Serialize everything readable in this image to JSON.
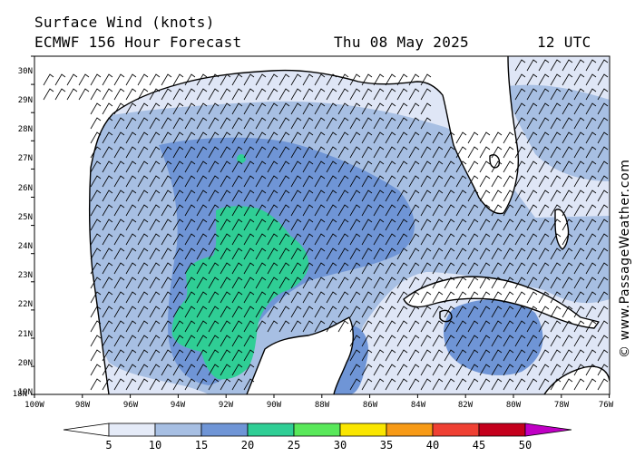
{
  "header": {
    "title": "Surface Wind (knots)",
    "model": "ECMWF 156 Hour Forecast",
    "date": "Thu 08 May 2025",
    "time": "12 UTC"
  },
  "credit": "© www.PassageWeather.com",
  "axes": {
    "lat_labels": [
      "30N",
      "29N",
      "28N",
      "27N",
      "26N",
      "25N",
      "24N",
      "23N",
      "22N",
      "21N",
      "20N",
      "19N",
      "18N"
    ],
    "lon_labels": [
      "100W",
      "98W",
      "96W",
      "94W",
      "92W",
      "90W",
      "88W",
      "86W",
      "84W",
      "82W",
      "80W",
      "78W",
      "76W"
    ]
  },
  "legend": {
    "labels": [
      "5",
      "10",
      "15",
      "20",
      "25",
      "30",
      "35",
      "40",
      "45",
      "50"
    ],
    "colors": [
      "#e5ebf8",
      "#a7bfe3",
      "#6f95d6",
      "#2fce95",
      "#59e85a",
      "#fae600",
      "#f79a16",
      "#ef4033",
      "#c4001c",
      "#c000c4"
    ],
    "low_arrow_color": "#ffffff"
  },
  "map": {
    "land_color": "#ffffff",
    "coast_color": "#000000",
    "wind_colors": {
      "calm": "#ffffff",
      "5_10": "#dfe6f6",
      "10_15": "#a7bfe3",
      "15_20": "#6f95d6",
      "20_25": "#2fce95"
    },
    "barb_direction": "SE"
  }
}
